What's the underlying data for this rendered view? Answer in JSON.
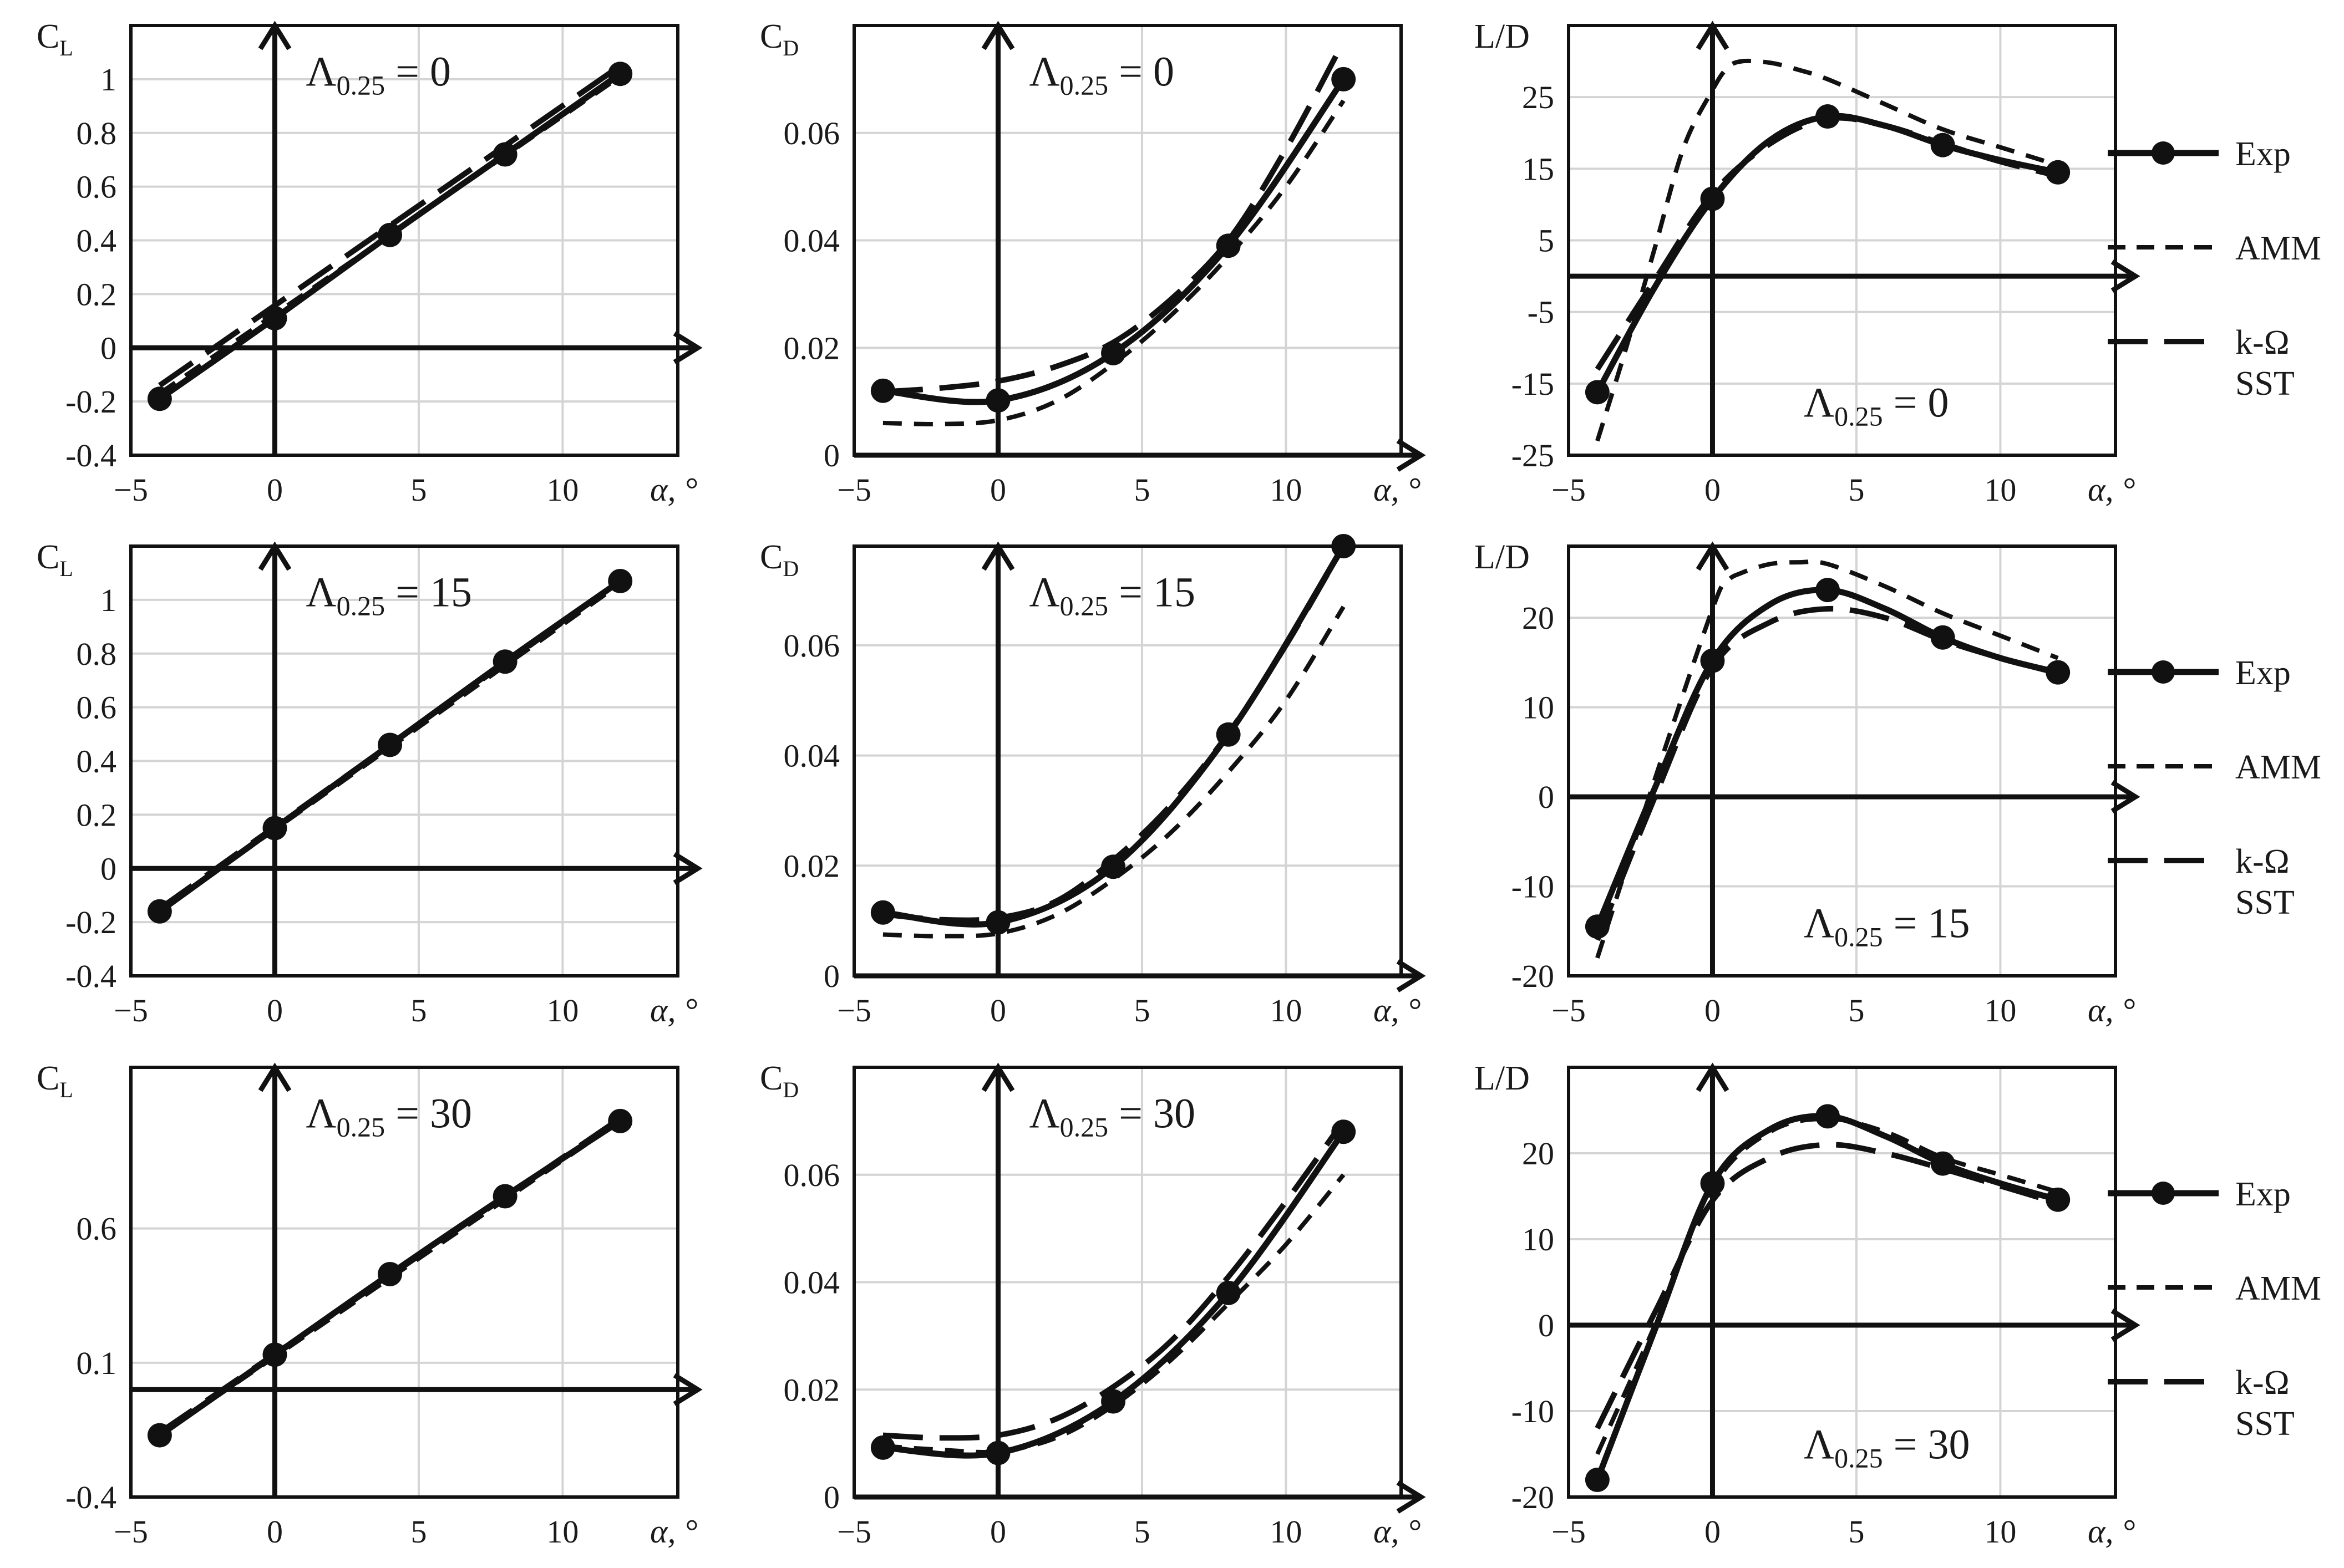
{
  "chart_data": {
    "type": "line",
    "legend": {
      "entries": [
        {
          "label": "Exp",
          "style": "solid-marker"
        },
        {
          "label": "AMM",
          "style": "short-dash"
        },
        {
          "label": "k-Ω",
          "label2": "SST",
          "style": "long-dash"
        }
      ]
    },
    "panels": [
      {
        "id": "cl-0",
        "ylabel": "C",
        "ylabel_sub": "L",
        "xlabel": "α, °",
        "annotation": "Λ",
        "annotation_sub": "0.25",
        "annotation_value": " = 0",
        "xlim": [
          -5,
          14
        ],
        "ylim": [
          -0.4,
          1.2
        ],
        "xticks": [
          "−5",
          "0",
          "5",
          "10"
        ],
        "xtick_values": [
          -5,
          0,
          5,
          10
        ],
        "yticks": [
          "-0.4",
          "-0.2",
          "0",
          "0.2",
          "0.4",
          "0.6",
          "0.8",
          "1"
        ],
        "ytick_values": [
          -0.4,
          -0.2,
          0,
          0.2,
          0.4,
          0.6,
          0.8,
          1
        ],
        "series": [
          {
            "name": "Exp",
            "x": [
              -4,
              0,
              4,
              8,
              12
            ],
            "y": [
              -0.19,
              0.11,
              0.42,
              0.72,
              1.02
            ]
          },
          {
            "name": "AMM",
            "x": [
              -4,
              12
            ],
            "y": [
              -0.17,
              1.01
            ]
          },
          {
            "name": "k-Ω SST",
            "x": [
              -4,
              12
            ],
            "y": [
              -0.14,
              1.05
            ]
          }
        ]
      },
      {
        "id": "cd-0",
        "ylabel": "C",
        "ylabel_sub": "D",
        "xlabel": "α, °",
        "annotation": "Λ",
        "annotation_sub": "0.25",
        "annotation_value": " = 0",
        "xlim": [
          -5,
          14
        ],
        "ylim": [
          0,
          0.08
        ],
        "xticks": [
          "−5",
          "0",
          "5",
          "10"
        ],
        "xtick_values": [
          -5,
          0,
          5,
          10
        ],
        "yticks": [
          "0",
          "0.02",
          "0.04",
          "0.06"
        ],
        "ytick_values": [
          0,
          0.02,
          0.04,
          0.06
        ],
        "series": [
          {
            "name": "Exp",
            "x": [
              -4,
              0,
              4,
              8,
              12
            ],
            "y": [
              0.012,
              0.0102,
              0.019,
              0.039,
              0.07
            ]
          },
          {
            "name": "AMM",
            "x": [
              -4,
              -2,
              0,
              2,
              4,
              6,
              8,
              10,
              12
            ],
            "y": [
              0.006,
              0.0058,
              0.0065,
              0.01,
              0.017,
              0.026,
              0.037,
              0.05,
              0.066
            ]
          },
          {
            "name": "k-Ω SST",
            "x": [
              -4,
              -2,
              0,
              2,
              4,
              6,
              8,
              10,
              12
            ],
            "y": [
              0.0118,
              0.0125,
              0.0138,
              0.0165,
              0.021,
              0.029,
              0.04,
              0.057,
              0.077
            ]
          }
        ]
      },
      {
        "id": "ld-0",
        "ylabel": "L/D",
        "ylabel_sub": "",
        "xlabel": "α, °",
        "annotation": "Λ",
        "annotation_sub": "0.25",
        "annotation_value": " = 0",
        "xlim": [
          -5,
          14
        ],
        "ylim": [
          -25,
          35
        ],
        "xticks": [
          "−5",
          "0",
          "5",
          "10"
        ],
        "xtick_values": [
          -5,
          0,
          5,
          10
        ],
        "yticks": [
          "-25",
          "-15",
          "-5",
          "5",
          "15",
          "25"
        ],
        "ytick_values": [
          -25,
          -15,
          -5,
          5,
          15,
          25
        ],
        "series": [
          {
            "name": "Exp",
            "x": [
              -4,
              -2,
              0,
              2,
              4,
              6,
              8,
              10,
              12
            ],
            "y": [
              -16.2,
              -1.5,
              10.8,
              19,
              22.3,
              21,
              18.3,
              16.2,
              14.5
            ]
          },
          {
            "name": "AMM",
            "x": [
              -4,
              -3,
              -2,
              -1,
              0,
              0.5,
              1,
              2,
              3,
              4,
              6,
              8,
              10,
              12
            ],
            "y": [
              -23,
              -10,
              4,
              18,
              26,
              29,
              30,
              29.8,
              28.8,
              27.5,
              24,
              20.5,
              18,
              15.5
            ]
          },
          {
            "name": "k-Ω SST",
            "x": [
              -4,
              -2,
              0,
              2,
              4,
              6,
              8,
              10,
              12
            ],
            "y": [
              -13,
              -0.5,
              11.5,
              18.5,
              22,
              21,
              18.5,
              16,
              14
            ]
          }
        ]
      },
      {
        "id": "cl-15",
        "ylabel": "C",
        "ylabel_sub": "L",
        "xlabel": "α, °",
        "annotation": "Λ",
        "annotation_sub": "0.25",
        "annotation_value": " = 15",
        "xlim": [
          -5,
          14
        ],
        "ylim": [
          -0.4,
          1.2
        ],
        "xticks": [
          "−5",
          "0",
          "5",
          "10"
        ],
        "xtick_values": [
          -5,
          0,
          5,
          10
        ],
        "yticks": [
          "-0.4",
          "-0.2",
          "0",
          "0.2",
          "0.4",
          "0.6",
          "0.8",
          "1"
        ],
        "ytick_values": [
          -0.4,
          -0.2,
          0,
          0.2,
          0.4,
          0.6,
          0.8,
          1
        ],
        "series": [
          {
            "name": "Exp",
            "x": [
              -4,
              0,
              4,
              8,
              12
            ],
            "y": [
              -0.16,
              0.15,
              0.46,
              0.77,
              1.07
            ]
          },
          {
            "name": "AMM",
            "x": [
              -4,
              12
            ],
            "y": [
              -0.16,
              1.06
            ]
          },
          {
            "name": "k-Ω SST",
            "x": [
              -4,
              12
            ],
            "y": [
              -0.15,
              1.07
            ]
          }
        ]
      },
      {
        "id": "cd-15",
        "ylabel": "C",
        "ylabel_sub": "D",
        "xlabel": "α, °",
        "annotation": "Λ",
        "annotation_sub": "0.25",
        "annotation_value": " = 15",
        "xlim": [
          -5,
          14
        ],
        "ylim": [
          0,
          0.078
        ],
        "xticks": [
          "−5",
          "0",
          "5",
          "10"
        ],
        "xtick_values": [
          -5,
          0,
          5,
          10
        ],
        "yticks": [
          "0",
          "0.02",
          "0.04",
          "0.06"
        ],
        "ytick_values": [
          0,
          0.02,
          0.04,
          0.06
        ],
        "series": [
          {
            "name": "Exp",
            "x": [
              -4,
              0,
              4,
              8,
              12
            ],
            "y": [
              0.0115,
              0.0097,
              0.0198,
              0.0438,
              0.078
            ]
          },
          {
            "name": "AMM",
            "x": [
              -4,
              -2,
              0,
              2,
              4,
              6,
              8,
              10,
              12
            ],
            "y": [
              0.0075,
              0.0072,
              0.0077,
              0.011,
              0.0175,
              0.026,
              0.037,
              0.05,
              0.067
            ]
          },
          {
            "name": "k-Ω SST",
            "x": [
              -4,
              -2,
              0,
              2,
              4,
              6,
              8,
              10,
              12
            ],
            "y": [
              0.0112,
              0.0102,
              0.0105,
              0.0135,
              0.021,
              0.031,
              0.044,
              0.06,
              0.078
            ]
          }
        ]
      },
      {
        "id": "ld-15",
        "ylabel": "L/D",
        "ylabel_sub": "",
        "xlabel": "α, °",
        "annotation": "Λ",
        "annotation_sub": "0.25",
        "annotation_value": " = 15",
        "xlim": [
          -5,
          14
        ],
        "ylim": [
          -20,
          28
        ],
        "xticks": [
          "−5",
          "0",
          "5",
          "10"
        ],
        "xtick_values": [
          -5,
          0,
          5,
          10
        ],
        "yticks": [
          "-20",
          "-10",
          "0",
          "10",
          "20"
        ],
        "ytick_values": [
          -20,
          -10,
          0,
          10,
          20
        ],
        "series": [
          {
            "name": "Exp",
            "x": [
              -4,
              -2,
              0,
              2,
              4,
              6,
              8,
              10,
              12
            ],
            "y": [
              -14.5,
              1,
              15.2,
              21.5,
              23.1,
              21,
              17.8,
              15.5,
              13.9
            ]
          },
          {
            "name": "AMM",
            "x": [
              -4,
              -2,
              0,
              0.5,
              1,
              2,
              3,
              4,
              6,
              8,
              10,
              12
            ],
            "y": [
              -18,
              2,
              21,
              24,
              25,
              26,
              26.2,
              26,
              23.5,
              20.5,
              18,
              15.5
            ]
          },
          {
            "name": "k-Ω SST",
            "x": [
              -4,
              -2,
              0,
              2,
              4,
              6,
              8,
              10,
              12
            ],
            "y": [
              -16,
              0,
              14.5,
              19.5,
              21,
              20,
              17.5,
              15.5,
              13.8
            ]
          }
        ]
      },
      {
        "id": "cl-30",
        "ylabel": "C",
        "ylabel_sub": "L",
        "xlabel": "α, °",
        "annotation": "Λ",
        "annotation_sub": "0.25",
        "annotation_value": " = 30",
        "xlim": [
          -5,
          14
        ],
        "ylim": [
          -0.4,
          1.2
        ],
        "xticks": [
          "−5",
          "0",
          "5",
          "10"
        ],
        "xtick_values": [
          -5,
          0,
          5,
          10
        ],
        "yticks": [
          "-0.4",
          "0.1",
          "0.6"
        ],
        "ytick_values": [
          -0.4,
          0.1,
          0.6
        ],
        "series": [
          {
            "name": "Exp",
            "x": [
              -4,
              0,
              4,
              8,
              12
            ],
            "y": [
              -0.17,
              0.13,
              0.43,
              0.72,
              1.0
            ]
          },
          {
            "name": "AMM",
            "x": [
              -4,
              12
            ],
            "y": [
              -0.17,
              1.0
            ]
          },
          {
            "name": "k-Ω SST",
            "x": [
              -4,
              12
            ],
            "y": [
              -0.16,
              1.01
            ]
          }
        ]
      },
      {
        "id": "cd-30",
        "ylabel": "C",
        "ylabel_sub": "D",
        "xlabel": "α, °",
        "annotation": "Λ",
        "annotation_sub": "0.25",
        "annotation_value": " = 30",
        "xlim": [
          -5,
          14
        ],
        "ylim": [
          0,
          0.08
        ],
        "xticks": [
          "−5",
          "0",
          "5",
          "10"
        ],
        "xtick_values": [
          -5,
          0,
          5,
          10
        ],
        "yticks": [
          "0",
          "0.02",
          "0.04",
          "0.06"
        ],
        "ytick_values": [
          0,
          0.02,
          0.04,
          0.06
        ],
        "series": [
          {
            "name": "Exp",
            "x": [
              -4,
              0,
              4,
              8,
              12
            ],
            "y": [
              0.0092,
              0.0082,
              0.0178,
              0.038,
              0.068
            ]
          },
          {
            "name": "AMM",
            "x": [
              -4,
              -2,
              0,
              2,
              4,
              6,
              8,
              10,
              12
            ],
            "y": [
              0.0095,
              0.0088,
              0.0085,
              0.011,
              0.017,
              0.0255,
              0.036,
              0.047,
              0.06
            ]
          },
          {
            "name": "k-Ω SST",
            "x": [
              -4,
              -2,
              0,
              2,
              4,
              6,
              8,
              10,
              12
            ],
            "y": [
              0.0115,
              0.011,
              0.0115,
              0.0145,
              0.0205,
              0.029,
              0.041,
              0.055,
              0.07
            ]
          }
        ]
      },
      {
        "id": "ld-30",
        "ylabel": "L/D",
        "ylabel_sub": "",
        "xlabel": "α, °",
        "annotation": "Λ",
        "annotation_sub": "0.25",
        "annotation_value": " = 30",
        "xlim": [
          -5,
          14
        ],
        "ylim": [
          -20,
          30
        ],
        "xticks": [
          "−5",
          "0",
          "5",
          "10"
        ],
        "xtick_values": [
          -5,
          0,
          5,
          10
        ],
        "yticks": [
          "-20",
          "-10",
          "0",
          "10",
          "20"
        ],
        "ytick_values": [
          -20,
          -10,
          0,
          10,
          20
        ],
        "series": [
          {
            "name": "Exp",
            "x": [
              -4,
              -2,
              0,
              2,
              4,
              6,
              8,
              10,
              12
            ],
            "y": [
              -18,
              -0.5,
              16.5,
              22.8,
              24.3,
              22,
              18.8,
              16.5,
              14.6
            ]
          },
          {
            "name": "AMM",
            "x": [
              -4,
              -2,
              0,
              2,
              4,
              6,
              8,
              10,
              12
            ],
            "y": [
              -15,
              0,
              16,
              22.5,
              24,
              22.5,
              19.5,
              17.5,
              15.5
            ]
          },
          {
            "name": "k-Ω SST",
            "x": [
              -4,
              -2,
              0,
              2,
              4,
              6,
              8,
              10,
              12
            ],
            "y": [
              -12,
              1.5,
              14.5,
              19.5,
              21,
              20,
              18.2,
              16.2,
              14.2
            ]
          }
        ]
      }
    ]
  }
}
